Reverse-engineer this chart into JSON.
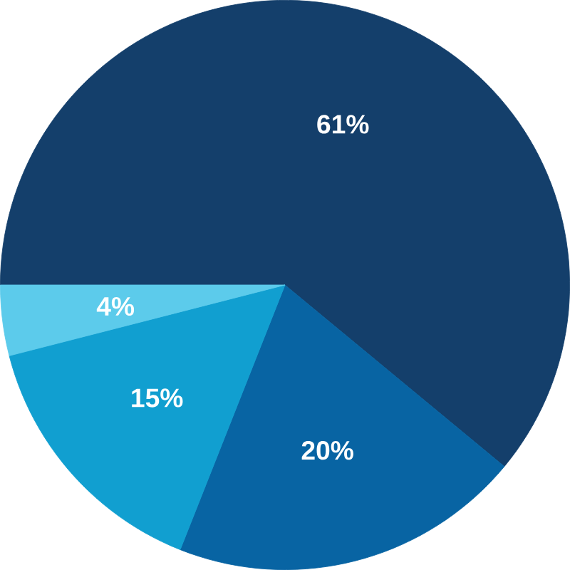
{
  "chart_data": {
    "type": "pie",
    "categories": [
      null,
      null,
      null,
      null
    ],
    "values": [
      61,
      20,
      15,
      4
    ],
    "colors": [
      "#143f6b",
      "#0864a3",
      "#119fd0",
      "#5ccbeb"
    ],
    "value_labels": [
      "61%",
      "20%",
      "15%",
      "4%"
    ]
  }
}
